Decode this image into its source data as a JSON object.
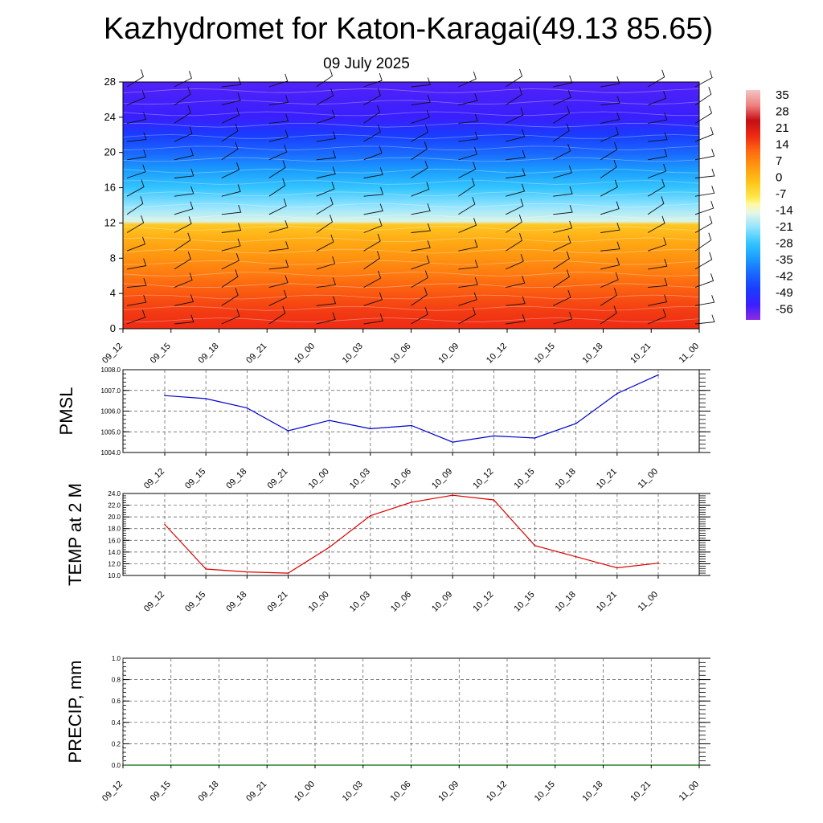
{
  "header": {
    "title": "Kazhydromet for Katon-Karagai(49.13 85.65)",
    "date": "09 July 2025"
  },
  "chart_data": [
    {
      "type": "heatmap",
      "x_ticks": [
        "09_12",
        "09_15",
        "09_18",
        "09_21",
        "10_00",
        "10_03",
        "10_06",
        "10_09",
        "10_12",
        "10_15",
        "10_18",
        "10_21",
        "11_00"
      ],
      "y_ticks": [
        0,
        4,
        8,
        12,
        16,
        20,
        24,
        28
      ],
      "ylim": [
        0,
        28
      ],
      "colorbar": {
        "labels": [
          "35",
          "28",
          "21",
          "14",
          "7",
          "0",
          "-7",
          "-14",
          "-21",
          "-28",
          "-35",
          "-42",
          "-49",
          "-56"
        ],
        "range": [
          -63,
          42
        ]
      },
      "temperature_profile": [
        {
          "y": 0,
          "value": 21
        },
        {
          "y": 2,
          "value": 19
        },
        {
          "y": 4,
          "value": 16
        },
        {
          "y": 6,
          "value": 12
        },
        {
          "y": 8,
          "value": 8
        },
        {
          "y": 10,
          "value": 4
        },
        {
          "y": 11.8,
          "value": -1
        },
        {
          "y": 12.2,
          "value": -15
        },
        {
          "y": 14,
          "value": -21
        },
        {
          "y": 16,
          "value": -28
        },
        {
          "y": 18,
          "value": -35
        },
        {
          "y": 20,
          "value": -42
        },
        {
          "y": 22,
          "value": -49
        },
        {
          "y": 24,
          "value": -56
        },
        {
          "y": 28,
          "value": -58
        }
      ]
    },
    {
      "type": "line",
      "ylabel": "PMSL",
      "categories": [
        "09_12",
        "09_15",
        "09_18",
        "09_21",
        "10_00",
        "10_03",
        "10_06",
        "10_09",
        "10_12",
        "10_15",
        "10_18",
        "10_21",
        "11_00"
      ],
      "values": [
        1006.75,
        1006.6,
        1006.15,
        1005.05,
        1005.55,
        1005.15,
        1005.3,
        1004.5,
        1004.8,
        1004.7,
        1005.4,
        1006.85,
        1007.75
      ],
      "ylim": [
        1004.0,
        1008.0
      ],
      "y_ticks": [
        "1004.0",
        "1005.0",
        "1006.0",
        "1007.0",
        "1008.0"
      ],
      "color": "#0000cc"
    },
    {
      "type": "line",
      "ylabel": "TEMP at 2 M",
      "categories": [
        "09_12",
        "09_15",
        "09_18",
        "09_21",
        "10_00",
        "10_03",
        "10_06",
        "10_09",
        "10_12",
        "10_15",
        "10_18",
        "10_21",
        "11_00"
      ],
      "values": [
        18.7,
        11.1,
        10.6,
        10.4,
        14.8,
        20.2,
        22.5,
        23.7,
        22.9,
        15.1,
        13.2,
        11.3,
        12.1
      ],
      "ylim": [
        10.0,
        24.0
      ],
      "y_ticks": [
        "10.0",
        "12.0",
        "14.0",
        "16.0",
        "18.0",
        "20.0",
        "22.0",
        "24.0"
      ],
      "color": "#dd0000"
    },
    {
      "type": "line",
      "ylabel": "PRECIP, mm",
      "categories": [
        "09_12",
        "09_15",
        "09_18",
        "09_21",
        "10_00",
        "10_03",
        "10_06",
        "10_09",
        "10_12",
        "10_15",
        "10_18",
        "10_21",
        "11_00"
      ],
      "values": [
        0,
        0,
        0,
        0,
        0,
        0,
        0,
        0,
        0,
        0,
        0,
        0,
        0
      ],
      "ylim": [
        0.0,
        1.0
      ],
      "y_ticks": [
        "0.0",
        "0.2",
        "0.4",
        "0.6",
        "0.8",
        "1.0"
      ],
      "color": "#006600"
    }
  ]
}
